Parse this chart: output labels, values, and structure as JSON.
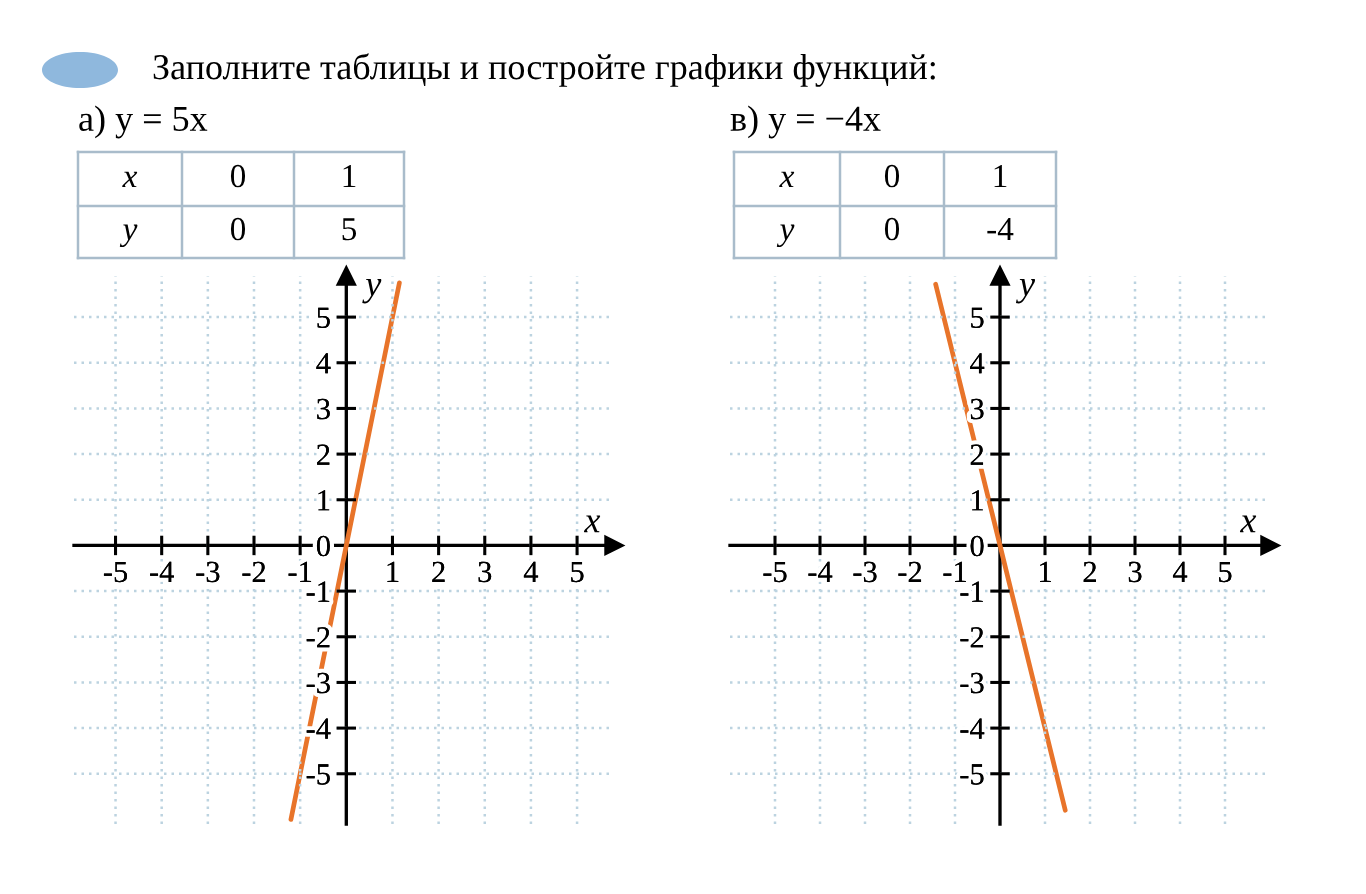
{
  "chart_data": [
    {
      "type": "line",
      "title": "Заполните таблицы и постройте графики функций:",
      "subtitle": "а) y = 5x",
      "xlabel": "x",
      "ylabel": "y",
      "x": [
        -1.2,
        0,
        1.15
      ],
      "series": [
        {
          "color": "#e8742a",
          "values": [
            -6,
            0,
            5.75
          ]
        }
      ],
      "xlim": [
        -5.9,
        5.8
      ],
      "ylim": [
        -6.1,
        5.9
      ],
      "xticks": [
        -5,
        -4,
        -3,
        -2,
        -1,
        1,
        2,
        3,
        4,
        5
      ],
      "yticks": [
        -5,
        -4,
        -3,
        -2,
        -1,
        0,
        1,
        2,
        3,
        4,
        5
      ],
      "grid": true,
      "marker": "none",
      "line_style": "solid",
      "annotations": [
        "x",
        "0",
        "1",
        "y",
        "0",
        "5"
      ]
    },
    {
      "type": "line",
      "subtitle": "в) y = −4x",
      "xlabel": "x",
      "ylabel": "y",
      "x": [
        -1.43,
        0,
        1.45
      ],
      "series": [
        {
          "color": "#e8742a",
          "values": [
            5.72,
            0,
            -5.8
          ]
        }
      ],
      "xlim": [
        -6,
        6
      ],
      "ylim": [
        -6.1,
        5.9
      ],
      "xticks": [
        -5,
        -4,
        -3,
        -2,
        -1,
        1,
        2,
        3,
        4,
        5
      ],
      "yticks": [
        -5,
        -4,
        -3,
        -2,
        -1,
        0,
        1,
        2,
        3,
        4,
        5
      ],
      "grid": true,
      "marker": "none",
      "line_style": "solid",
      "annotations": [
        "x",
        "0",
        "1",
        "y",
        "0",
        "-4"
      ]
    }
  ]
}
